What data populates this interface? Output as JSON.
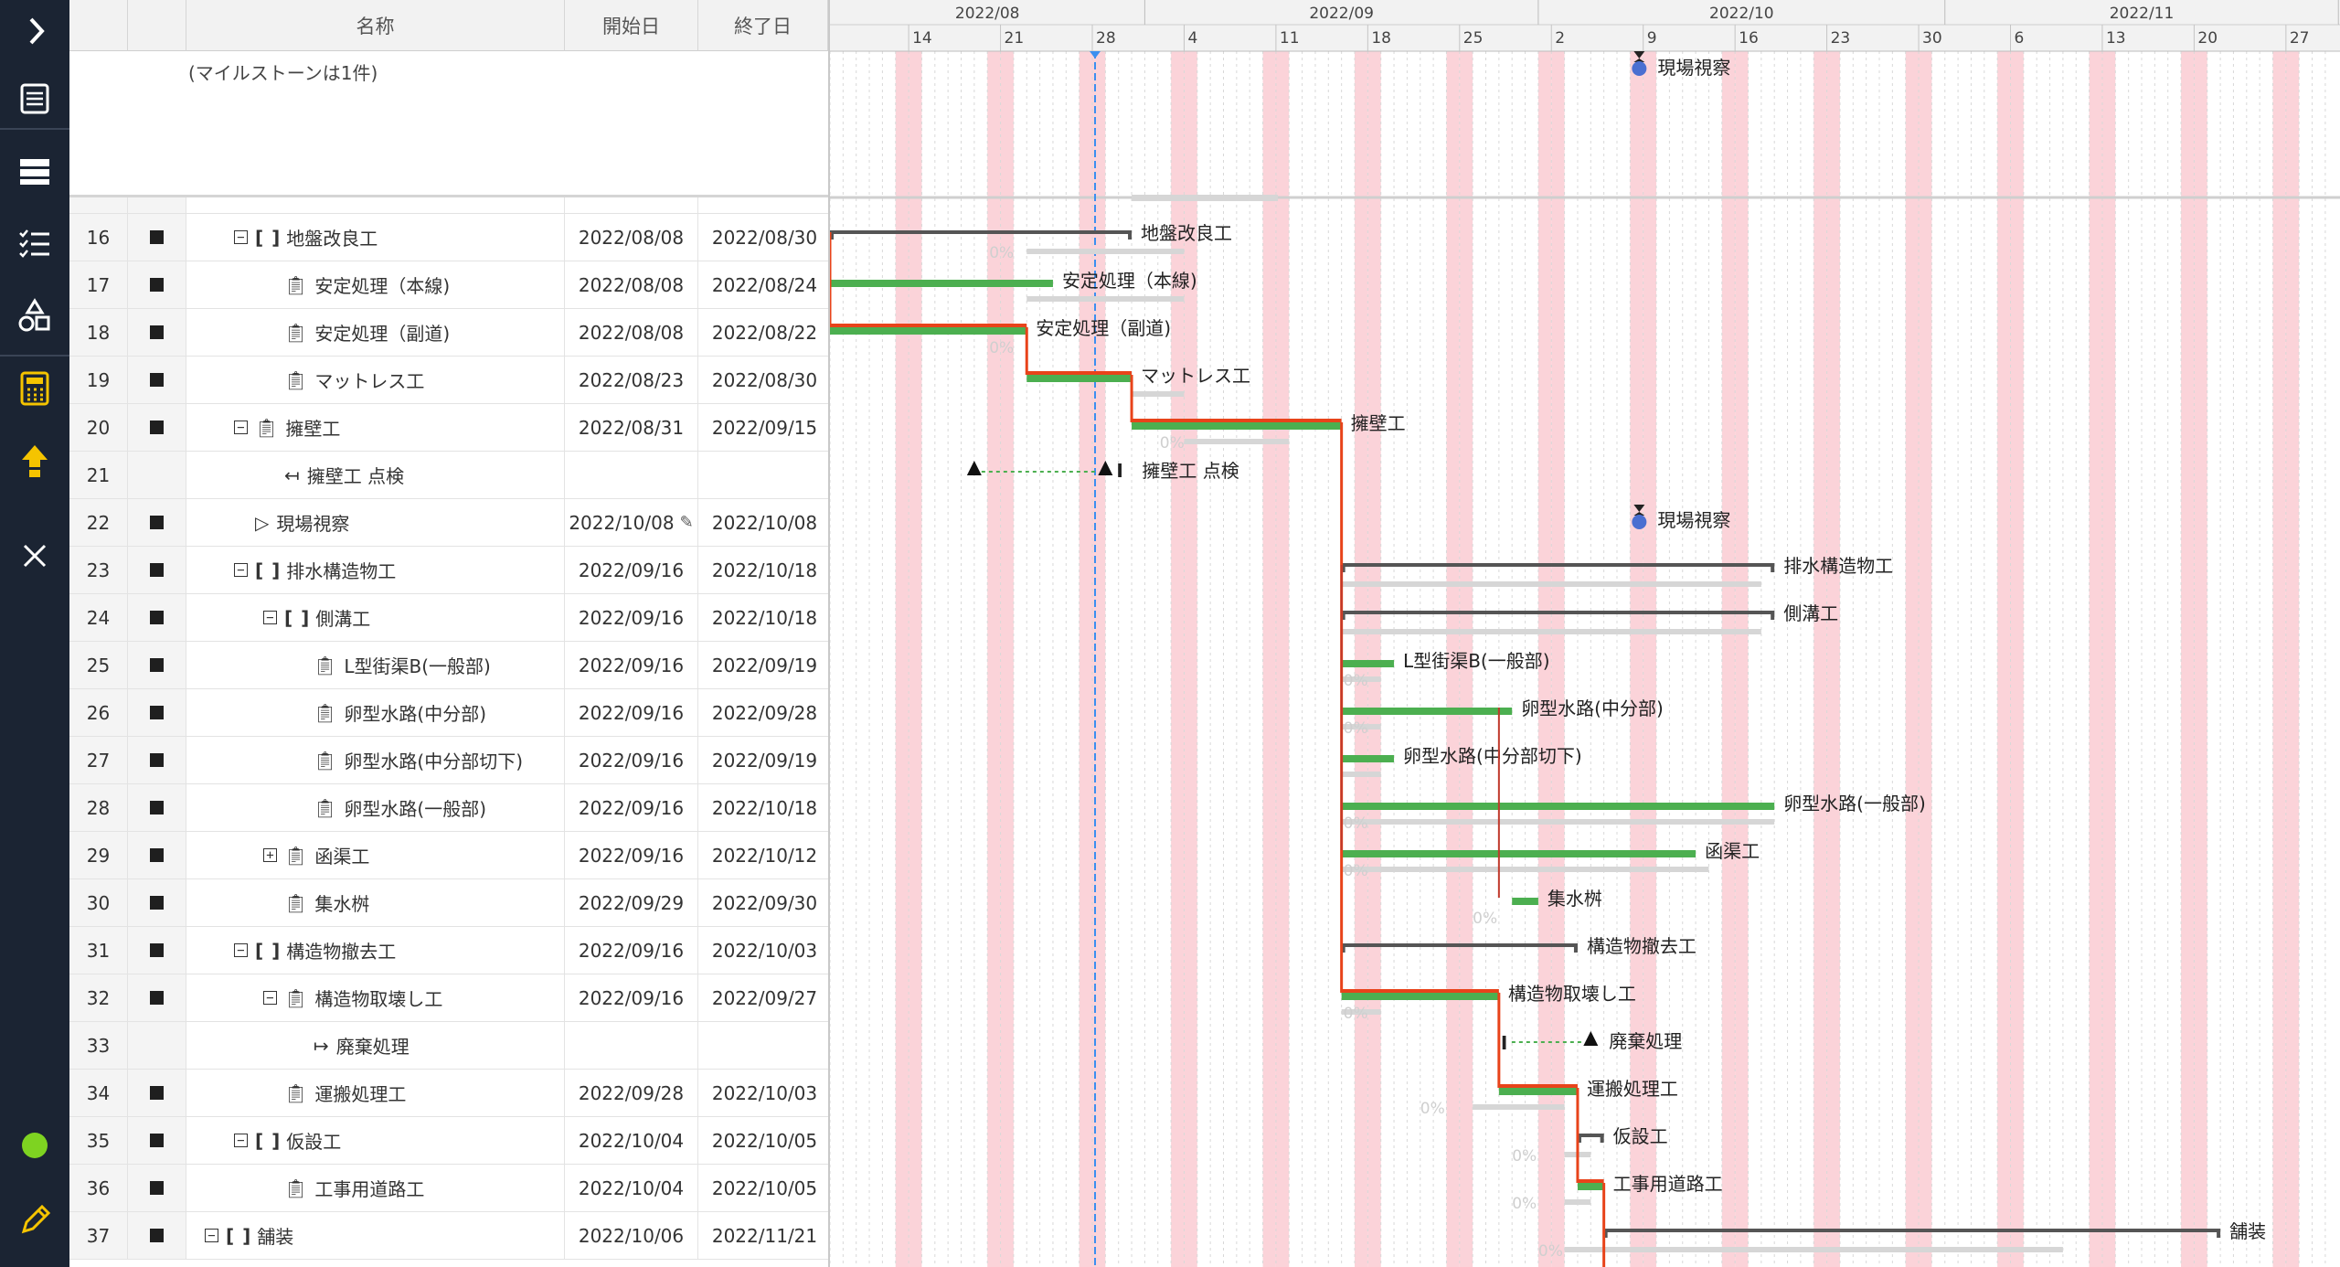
{
  "columns": {
    "name": "名称",
    "start": "開始日",
    "end": "終了日"
  },
  "milestone_note": "(マイルストーンは1件)",
  "rail": [
    {
      "name": "expand-chevron-icon"
    },
    {
      "name": "gantt-view-icon"
    },
    {
      "name": "table-view-icon"
    },
    {
      "name": "task-list-icon"
    },
    {
      "name": "shapes-icon"
    },
    {
      "name": "calculator-icon"
    },
    {
      "name": "upload-icon"
    },
    {
      "name": "close-icon"
    },
    {
      "name": "status-indicator-icon"
    },
    {
      "name": "edit-pencil-icon"
    }
  ],
  "colors": {
    "rail": "#1b2433",
    "calculator": "#f5c400",
    "status": "#7ed321",
    "weekend": "#fbd3d9",
    "bar_green": "#4caf50",
    "critical": "#e8431a",
    "today": "#3b8ff0"
  },
  "rows": [
    {
      "num": "16",
      "level": 1,
      "toggle": "−",
      "icon": "bracket",
      "name": "地盤改良工",
      "start": "2022/08/08",
      "end": "2022/08/30"
    },
    {
      "num": "17",
      "level": 2,
      "toggle": "",
      "icon": "clipboard",
      "name": "安定処理（本線)",
      "start": "2022/08/08",
      "end": "2022/08/24"
    },
    {
      "num": "18",
      "level": 2,
      "toggle": "",
      "icon": "clipboard",
      "name": "安定処理（副道)",
      "start": "2022/08/08",
      "end": "2022/08/22"
    },
    {
      "num": "19",
      "level": 2,
      "toggle": "",
      "icon": "clipboard",
      "name": "マットレス工",
      "start": "2022/08/23",
      "end": "2022/08/30"
    },
    {
      "num": "20",
      "level": 1,
      "toggle": "−",
      "icon": "clipboard",
      "name": "擁壁工",
      "start": "2022/08/31",
      "end": "2022/09/15"
    },
    {
      "num": "21",
      "level": 2,
      "toggle": "",
      "icon": "arrow-left",
      "name": "擁壁工 点検",
      "start": "",
      "end": "",
      "nomark": true
    },
    {
      "num": "22",
      "level": 1,
      "toggle": "",
      "icon": "flag",
      "name": "現場視察",
      "start": "2022/10/08",
      "end": "2022/10/08",
      "pencil": true
    },
    {
      "num": "23",
      "level": 1,
      "toggle": "−",
      "icon": "bracket",
      "name": "排水構造物工",
      "start": "2022/09/16",
      "end": "2022/10/18"
    },
    {
      "num": "24",
      "level": 2,
      "toggle": "−",
      "icon": "bracket",
      "name": "側溝工",
      "start": "2022/09/16",
      "end": "2022/10/18"
    },
    {
      "num": "25",
      "level": 3,
      "toggle": "",
      "icon": "clipboard",
      "name": "L型街渠B(一般部)",
      "start": "2022/09/16",
      "end": "2022/09/19"
    },
    {
      "num": "26",
      "level": 3,
      "toggle": "",
      "icon": "clipboard",
      "name": "卵型水路(中分部)",
      "start": "2022/09/16",
      "end": "2022/09/28"
    },
    {
      "num": "27",
      "level": 3,
      "toggle": "",
      "icon": "clipboard",
      "name": "卵型水路(中分部切下)",
      "start": "2022/09/16",
      "end": "2022/09/19"
    },
    {
      "num": "28",
      "level": 3,
      "toggle": "",
      "icon": "clipboard",
      "name": "卵型水路(一般部)",
      "start": "2022/09/16",
      "end": "2022/10/18"
    },
    {
      "num": "29",
      "level": 2,
      "toggle": "+",
      "icon": "clipboard",
      "name": "函渠工",
      "start": "2022/09/16",
      "end": "2022/10/12"
    },
    {
      "num": "30",
      "level": 2,
      "toggle": "",
      "icon": "clipboard",
      "name": "集水桝",
      "start": "2022/09/29",
      "end": "2022/09/30"
    },
    {
      "num": "31",
      "level": 1,
      "toggle": "−",
      "icon": "bracket",
      "name": "構造物撤去工",
      "start": "2022/09/16",
      "end": "2022/10/03"
    },
    {
      "num": "32",
      "level": 2,
      "toggle": "−",
      "icon": "clipboard",
      "name": "構造物取壊し工",
      "start": "2022/09/16",
      "end": "2022/09/27"
    },
    {
      "num": "33",
      "level": 3,
      "toggle": "",
      "icon": "arrow-right",
      "name": "廃棄処理",
      "start": "",
      "end": "",
      "nomark": true
    },
    {
      "num": "34",
      "level": 2,
      "toggle": "",
      "icon": "clipboard",
      "name": "運搬処理工",
      "start": "2022/09/28",
      "end": "2022/10/03"
    },
    {
      "num": "35",
      "level": 1,
      "toggle": "−",
      "icon": "bracket",
      "name": "仮設工",
      "start": "2022/10/04",
      "end": "2022/10/05"
    },
    {
      "num": "36",
      "level": 2,
      "toggle": "",
      "icon": "clipboard",
      "name": "工事用道路工",
      "start": "2022/10/04",
      "end": "2022/10/05"
    },
    {
      "num": "37",
      "level": 0,
      "toggle": "−",
      "icon": "bracket",
      "name": "舗装",
      "start": "2022/10/06",
      "end": "2022/11/21"
    }
  ],
  "timeline": {
    "months": [
      "2022/08",
      "2022/09",
      "2022/10",
      "2022/11"
    ],
    "weeks": [
      "14",
      "21",
      "28",
      "4",
      "11",
      "18",
      "25",
      "2",
      "9",
      "16",
      "23",
      "30",
      "6",
      "13",
      "20",
      "27"
    ],
    "progress_label": "0%",
    "milestone_top_label": "現場視察"
  }
}
